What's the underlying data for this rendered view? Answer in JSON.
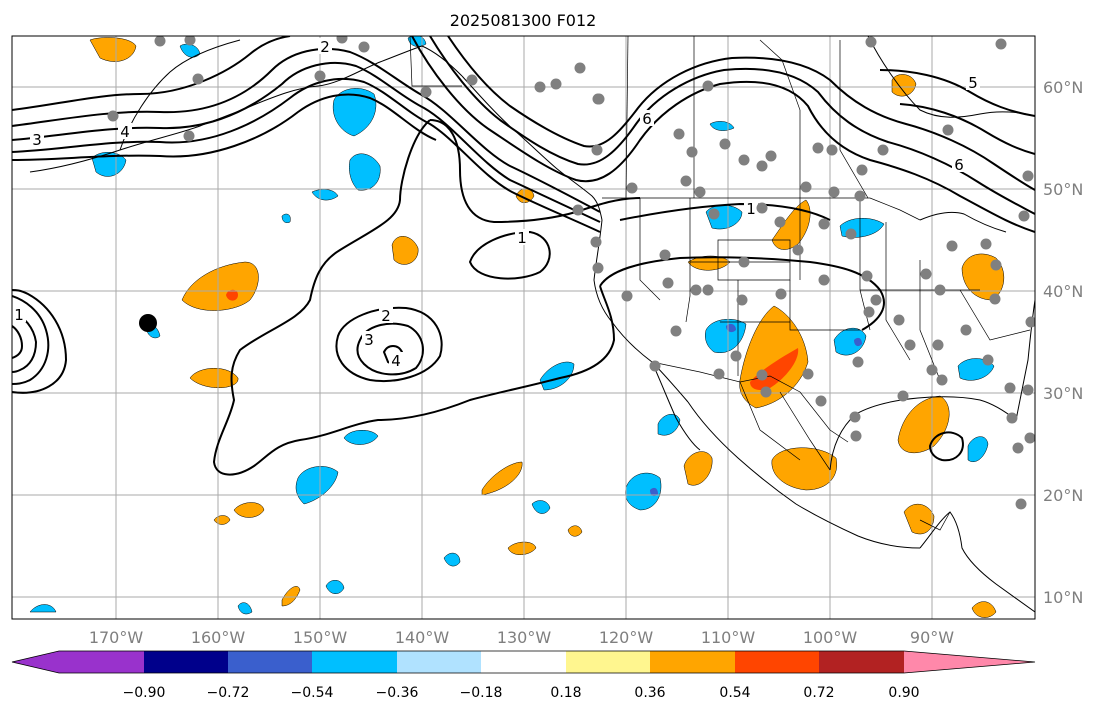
{
  "title": "2025081300 F012",
  "lon_labels": [
    "170°W",
    "160°W",
    "150°W",
    "140°W",
    "130°W",
    "120°W",
    "110°W",
    "100°W",
    "90°W"
  ],
  "lat_labels": [
    "60°N",
    "50°N",
    "40°N",
    "30°N",
    "20°N",
    "10°N"
  ],
  "colorbar": {
    "ticks": [
      "−0.90",
      "−0.72",
      "−0.54",
      "−0.36",
      "−0.18",
      "0.18",
      "0.36",
      "0.54",
      "0.72",
      "0.90"
    ],
    "colors": [
      "#9932cc",
      "#00008b",
      "#3a5fcd",
      "#00bfff",
      "#b0e2ff",
      "#ffffff",
      "#fff68f",
      "#ffa500",
      "#ff4500",
      "#b22222",
      "#ff88aa"
    ]
  },
  "contour_labels": [
    "1",
    "2",
    "3",
    "4",
    "5",
    "6"
  ],
  "colors": {
    "grid": "#aaaaaa",
    "coast": "#000000",
    "contour": "#000000",
    "station": "#808080"
  }
}
